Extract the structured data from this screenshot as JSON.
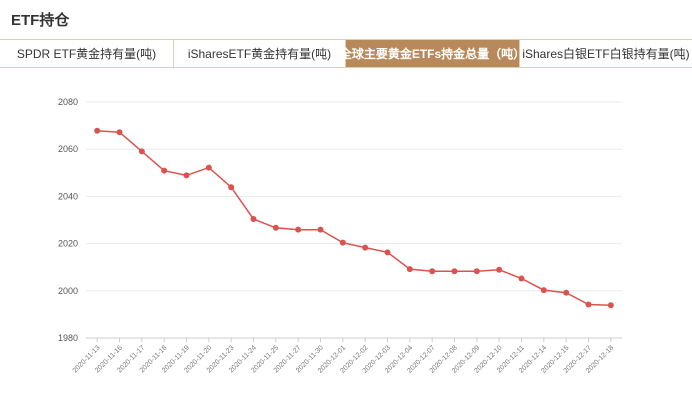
{
  "header": {
    "title": "ETF持仓"
  },
  "tabs": [
    {
      "label": "SPDR ETF黄金持有量(吨)",
      "active": false
    },
    {
      "label": "iSharesETF黄金持有量(吨)",
      "active": false
    },
    {
      "label": "全球主要黄金ETFs持金总量（吨）",
      "active": true
    },
    {
      "label": "iShares白银ETF白银持有量(吨)",
      "active": false
    }
  ],
  "chart_data": {
    "type": "line",
    "title": "",
    "xlabel": "",
    "ylabel": "",
    "ylim": [
      1980,
      2080
    ],
    "yticks": [
      "1980",
      "2000",
      "2020",
      "2040",
      "2060",
      "2080"
    ],
    "grid": true,
    "categories": [
      "2020-11-13",
      "2020-11-16",
      "2020-11-17",
      "2020-11-18",
      "2020-11-19",
      "2020-11-20",
      "2020-11-23",
      "2020-11-24",
      "2020-11-25",
      "2020-11-27",
      "2020-11-30",
      "2020-12-01",
      "2020-12-02",
      "2020-12-03",
      "2020-12-04",
      "2020-12-07",
      "2020-12-08",
      "2020-12-09",
      "2020-12-10",
      "2020-12-11",
      "2020-12-14",
      "2020-12-15",
      "2020-12-17",
      "2020-12-18"
    ],
    "series": [
      {
        "values": [
          2067.8,
          2067.2,
          2059.1,
          2050.9,
          2048.9,
          2052.2,
          2043.9,
          2030.4,
          2026.7,
          2025.9,
          2025.9,
          2020.4,
          2018.3,
          2016.3,
          2009.2,
          2008.3,
          2008.3,
          2008.3,
          2008.9,
          2005.2,
          2000.3,
          1999.2,
          1994.2,
          1993.9
        ],
        "color": "#d9534f"
      }
    ]
  }
}
